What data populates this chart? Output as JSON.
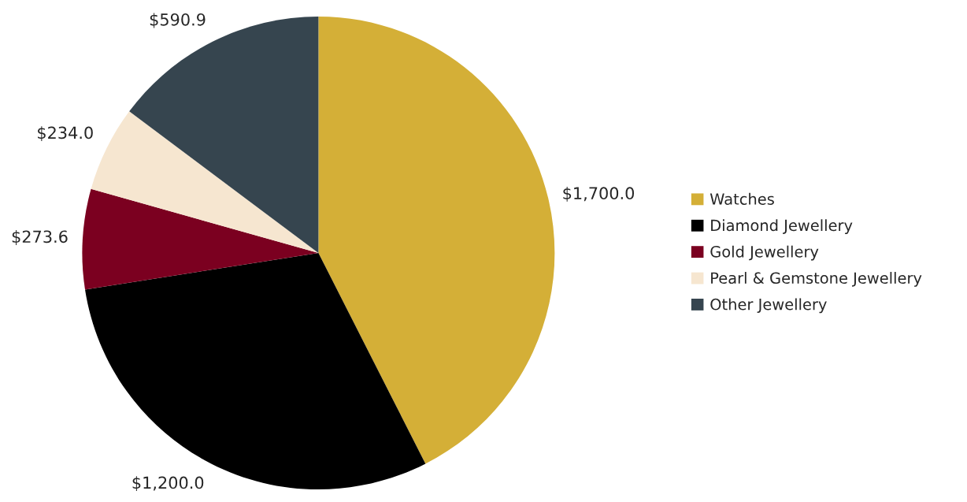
{
  "chart_data": {
    "type": "pie",
    "categories": [
      "Watches",
      "Diamond Jewellery",
      "Gold Jewellery",
      "Pearl & Gemstone Jewellery",
      "Other Jewellery"
    ],
    "values": [
      1700.0,
      1200.0,
      273.6,
      234.0,
      590.9
    ],
    "value_labels": [
      "$1,700.0",
      "$1,200.0",
      "$273.6",
      "$234.0",
      "$590.9"
    ],
    "colors": [
      "#d4af37",
      "#000000",
      "#7b0020",
      "#f6e6d0",
      "#36454f"
    ],
    "legend": "right"
  }
}
